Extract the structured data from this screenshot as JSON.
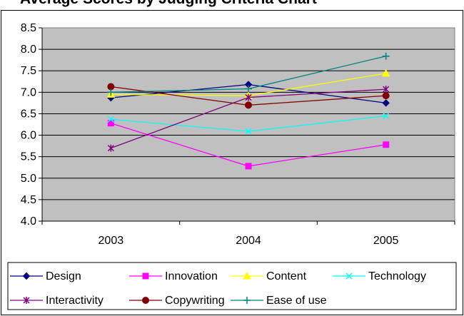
{
  "chart_data": {
    "type": "line",
    "title": "Average Scores by Judging Criteria Chart",
    "xlabel": "",
    "ylabel": "",
    "categories": [
      "2003",
      "2004",
      "2005"
    ],
    "ylim": [
      4.0,
      8.5
    ],
    "yticks": [
      "4.0",
      "4.5",
      "5.0",
      "5.5",
      "6.0",
      "6.5",
      "7.0",
      "7.5",
      "8.0",
      "8.5"
    ],
    "grid": true,
    "legend_position": "bottom",
    "series": [
      {
        "name": "Design",
        "values": [
          6.87,
          7.18,
          6.75
        ],
        "color": "#000080",
        "marker": "diamond"
      },
      {
        "name": "Innovation",
        "values": [
          6.28,
          5.28,
          5.78
        ],
        "color": "#FF00FF",
        "marker": "square"
      },
      {
        "name": "Content",
        "values": [
          6.95,
          6.92,
          7.44
        ],
        "color": "#FFFF00",
        "marker": "triangle"
      },
      {
        "name": "Technology",
        "values": [
          6.37,
          6.09,
          6.45
        ],
        "color": "#00FFFF",
        "marker": "x"
      },
      {
        "name": "Interactivity",
        "values": [
          5.7,
          6.88,
          7.07
        ],
        "color": "#800080",
        "marker": "star"
      },
      {
        "name": "Copywriting",
        "values": [
          7.13,
          6.7,
          6.92
        ],
        "color": "#800000",
        "marker": "circle"
      },
      {
        "name": "Ease of use",
        "values": [
          7.0,
          7.08,
          7.84
        ],
        "color": "#008080",
        "marker": "plus"
      }
    ],
    "plot_background": "#C0C0C0"
  }
}
